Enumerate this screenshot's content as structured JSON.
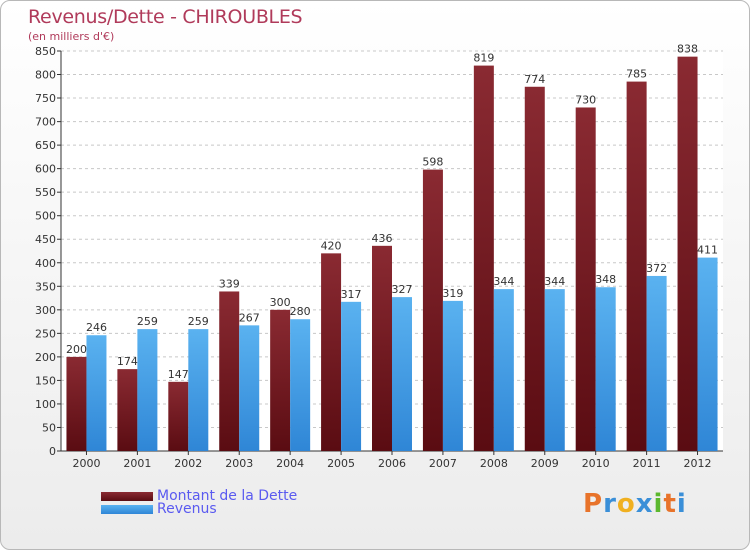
{
  "chart_data": {
    "type": "bar",
    "title": "Revenus/Dette - CHIROUBLES",
    "subtitle": "(en milliers d'€)",
    "categories": [
      "2000",
      "2001",
      "2002",
      "2003",
      "2004",
      "2005",
      "2006",
      "2007",
      "2008",
      "2009",
      "2010",
      "2011",
      "2012"
    ],
    "series": [
      {
        "name": "Montant de la Dette",
        "values": [
          200,
          174,
          147,
          339,
          300,
          420,
          436,
          598,
          819,
          774,
          730,
          785,
          838
        ],
        "color": "#7a1c22"
      },
      {
        "name": "Revenus",
        "values": [
          246,
          259,
          259,
          267,
          280,
          317,
          327,
          319,
          344,
          344,
          348,
          372,
          411
        ],
        "color": "#4ca3e8"
      }
    ],
    "ylim": [
      0,
      850
    ],
    "yticks": [
      0,
      50,
      100,
      150,
      200,
      250,
      300,
      350,
      400,
      450,
      500,
      550,
      600,
      650,
      700,
      750,
      800,
      850
    ],
    "grid": true,
    "legend_position": "bottom-left"
  },
  "logo": {
    "letters": [
      "P",
      "r",
      "o",
      "x",
      "i",
      "t",
      "i"
    ],
    "colors": [
      "#e8732a",
      "#3a8fd8",
      "#f0b020",
      "#3a8fd8",
      "#5cb82e",
      "#e8732a",
      "#3a8fd8"
    ]
  }
}
